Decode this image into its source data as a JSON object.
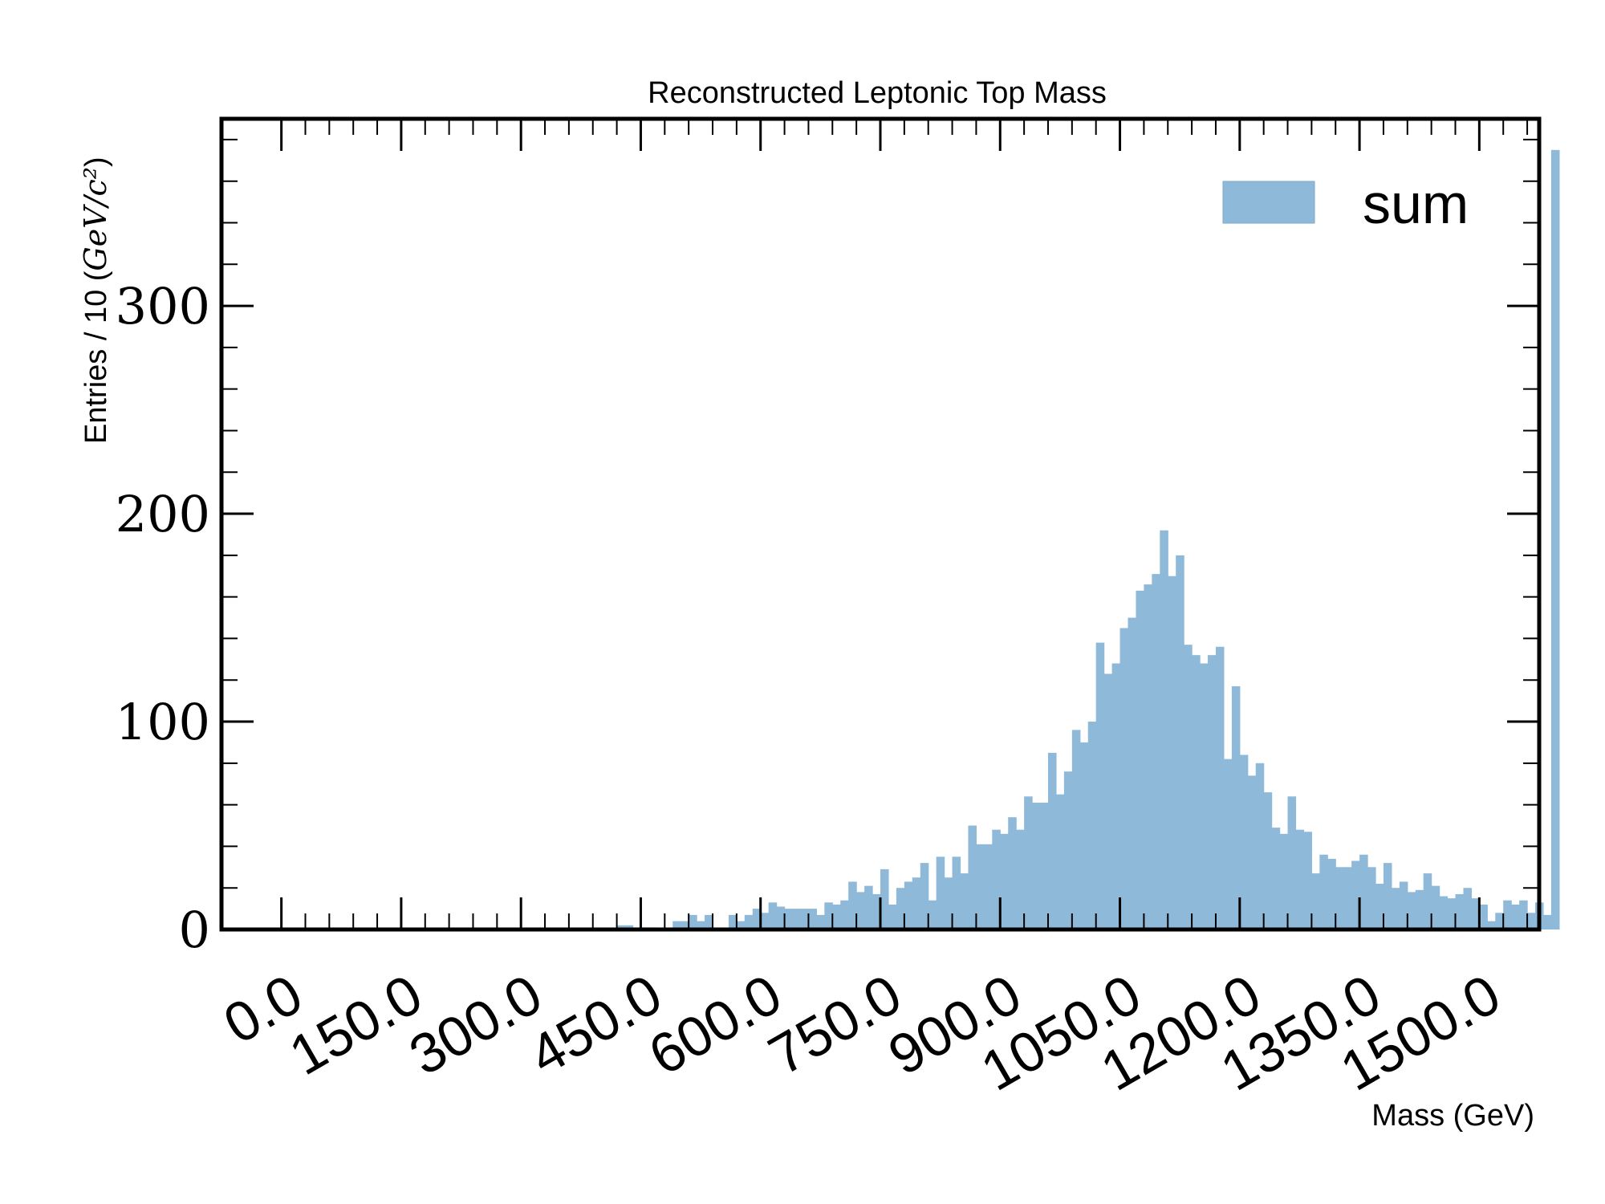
{
  "chart_data": {
    "type": "bar",
    "title": "Reconstructed Leptonic Top Mass",
    "xlabel": "Mass (GeV)",
    "ylabel": "Entries / 10 (GeV/c²)",
    "ylabel_prefix": "Entries / 10 (",
    "ylabel_math": "GeV/c²",
    "ylabel_suffix": ")",
    "xlim": [
      -75,
      1575
    ],
    "ylim": [
      0,
      390
    ],
    "bin_width": 10,
    "xticks": [
      0,
      150,
      300,
      450,
      600,
      750,
      900,
      1050,
      1200,
      1350,
      1500
    ],
    "xtick_labels": [
      "0.0",
      "150.0",
      "300.0",
      "450.0",
      "600.0",
      "750.0",
      "900.0",
      "1050.0",
      "1200.0",
      "1350.0",
      "1500.0"
    ],
    "yticks": [
      0,
      100,
      200,
      300
    ],
    "ytick_labels": [
      "0",
      "100",
      "200",
      "300"
    ],
    "grid": false,
    "legend_position": "top-right",
    "series": [
      {
        "name": "sum",
        "color": "#8fb9d9",
        "bin_starts": [
          420,
          430,
          440,
          450,
          460,
          470,
          480,
          490,
          500,
          510,
          520,
          530,
          540,
          550,
          560,
          570,
          580,
          590,
          600,
          610,
          620,
          630,
          640,
          650,
          660,
          670,
          680,
          690,
          700,
          710,
          720,
          730,
          740,
          750,
          760,
          770,
          780,
          790,
          800,
          810,
          820,
          830,
          840,
          850,
          860,
          870,
          880,
          890,
          900,
          910,
          920,
          930,
          940,
          950,
          960,
          970,
          980,
          990,
          1000,
          1010,
          1020,
          1030,
          1040,
          1050,
          1060,
          1070,
          1080,
          1090,
          1100,
          1110,
          1120,
          1130,
          1140,
          1150,
          1160,
          1170,
          1180,
          1190,
          1200,
          1210,
          1220,
          1230,
          1240,
          1250,
          1260,
          1270,
          1280,
          1290,
          1300,
          1310,
          1320,
          1330,
          1340,
          1350,
          1360,
          1370,
          1380,
          1390,
          1400,
          1410,
          1420,
          1430,
          1440,
          1450,
          1460,
          1470,
          1480,
          1490,
          1500,
          1510,
          1520,
          1530,
          1540,
          1550,
          1560,
          1570,
          1580,
          1590
        ],
        "values": [
          2,
          2,
          1,
          1,
          1,
          0,
          0,
          4,
          4,
          7,
          4,
          7,
          0,
          0,
          7,
          4,
          7,
          10,
          8,
          13,
          11,
          10,
          10,
          10,
          10,
          7,
          13,
          12,
          14,
          23,
          18,
          21,
          17,
          29,
          12,
          20,
          23,
          25,
          32,
          14,
          35,
          25,
          35,
          27,
          50,
          41,
          41,
          48,
          46,
          54,
          48,
          64,
          61,
          61,
          85,
          65,
          76,
          96,
          90,
          100,
          138,
          123,
          128,
          145,
          150,
          163,
          166,
          171,
          192,
          170,
          180,
          137,
          132,
          128,
          132,
          136,
          82,
          117,
          84,
          74,
          80,
          66,
          49,
          46,
          64,
          48,
          47,
          27,
          36,
          34,
          30,
          30,
          33,
          36,
          30,
          22,
          32,
          20,
          23,
          18,
          19,
          27,
          21,
          16,
          15,
          17,
          20,
          15,
          12,
          4,
          8,
          14,
          12,
          14,
          8,
          13,
          7,
          375
        ]
      }
    ]
  }
}
